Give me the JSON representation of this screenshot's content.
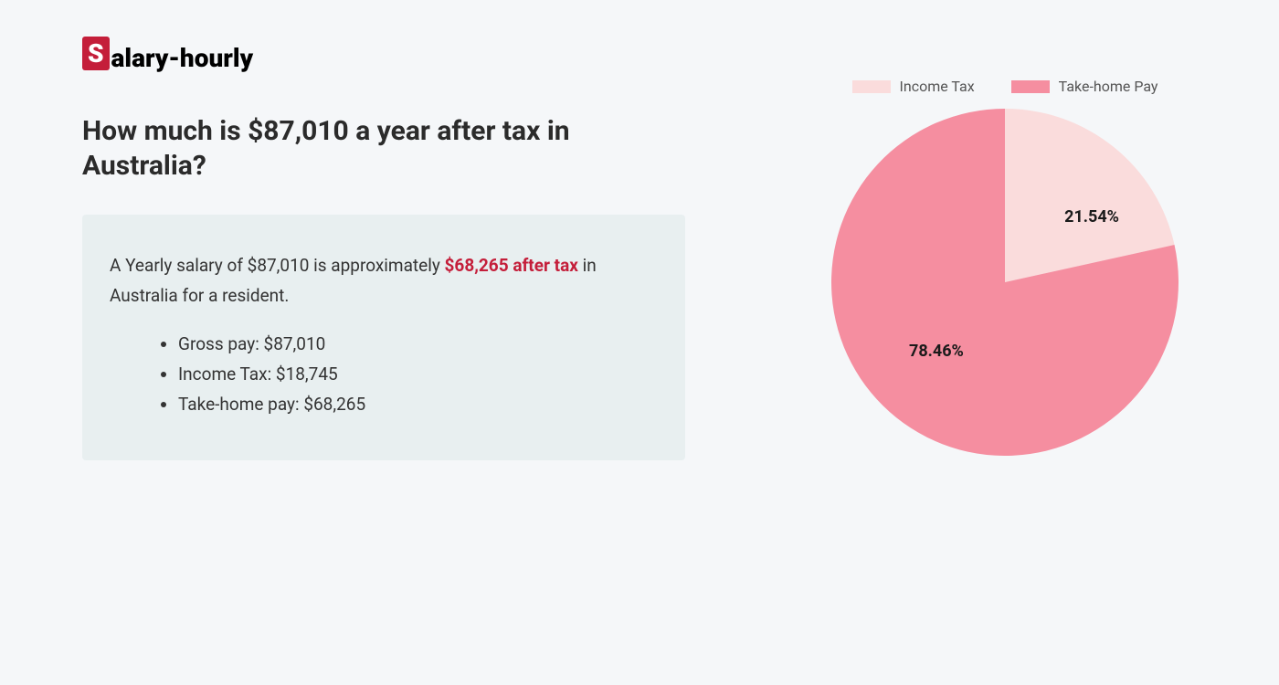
{
  "logo": {
    "initial": "S",
    "rest": "alary-hourly"
  },
  "heading": "How much is $87,010 a year after tax in Australia?",
  "summary": {
    "text_before": "A Yearly salary of $87,010 is approximately ",
    "highlight": "$68,265 after tax",
    "text_after": " in Australia for a resident."
  },
  "bullets": [
    "Gross pay: $87,010",
    "Income Tax: $18,745",
    "Take-home pay: $68,265"
  ],
  "chart": {
    "type": "pie",
    "background_color": "#f5f7f9",
    "slices": [
      {
        "label": "Income Tax",
        "value": 21.54,
        "display": "21.54%",
        "color": "#fadcdc"
      },
      {
        "label": "Take-home Pay",
        "value": 78.46,
        "display": "78.46%",
        "color": "#f58ea0"
      }
    ],
    "label_fontsize": 18,
    "label_color": "#1a1a1a",
    "legend_fontsize": 16,
    "legend_color": "#555555",
    "radius": 190,
    "start_angle_deg": 0
  },
  "colors": {
    "page_bg": "#f5f7f9",
    "logo_red": "#c41e3a",
    "summary_box_bg": "#e8eff0",
    "heading_color": "#2b2b2b",
    "text_color": "#333333"
  }
}
